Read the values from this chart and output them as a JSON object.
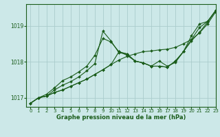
{
  "xlabel": "Graphe pression niveau de la mer (hPa)",
  "background_color": "#cce8e8",
  "plot_bg_color": "#cce8e8",
  "grid_color": "#aacccc",
  "line_color": "#1a5c1a",
  "border_color": "#1a5c1a",
  "xlim": [
    -0.5,
    23
  ],
  "ylim": [
    1016.75,
    1019.6
  ],
  "yticks": [
    1017,
    1018,
    1019
  ],
  "xticks": [
    0,
    1,
    2,
    3,
    4,
    5,
    6,
    7,
    8,
    9,
    10,
    11,
    12,
    13,
    14,
    15,
    16,
    17,
    18,
    19,
    20,
    21,
    22,
    23
  ],
  "series": [
    [
      1016.85,
      1017.0,
      1017.05,
      1017.15,
      1017.22,
      1017.32,
      1017.42,
      1017.52,
      1017.65,
      1017.78,
      1017.92,
      1018.05,
      1018.15,
      1018.22,
      1018.28,
      1018.3,
      1018.33,
      1018.35,
      1018.4,
      1018.5,
      1018.62,
      1018.8,
      1019.05,
      1019.38
    ],
    [
      1016.85,
      1017.0,
      1017.1,
      1017.28,
      1017.48,
      1017.58,
      1017.72,
      1017.88,
      1018.18,
      1018.65,
      1018.55,
      1018.28,
      1018.18,
      1018.02,
      1017.97,
      1017.88,
      1018.02,
      1017.88,
      1017.98,
      1018.28,
      1018.58,
      1018.82,
      1019.1,
      1019.42
    ],
    [
      1016.85,
      1017.0,
      1017.05,
      1017.22,
      1017.35,
      1017.45,
      1017.58,
      1017.75,
      1017.95,
      1018.85,
      1018.58,
      1018.25,
      1018.22,
      1018.02,
      1017.97,
      1017.88,
      1017.88,
      1017.85,
      1018.02,
      1018.28,
      1018.72,
      1019.05,
      1019.12,
      1019.42
    ],
    [
      1016.85,
      1017.0,
      1017.05,
      1017.15,
      1017.22,
      1017.32,
      1017.42,
      1017.52,
      1017.65,
      1017.78,
      1017.92,
      1018.28,
      1018.22,
      1018.02,
      1017.97,
      1017.88,
      1017.88,
      1017.85,
      1018.02,
      1018.28,
      1018.62,
      1018.95,
      1019.12,
      1019.42
    ]
  ]
}
